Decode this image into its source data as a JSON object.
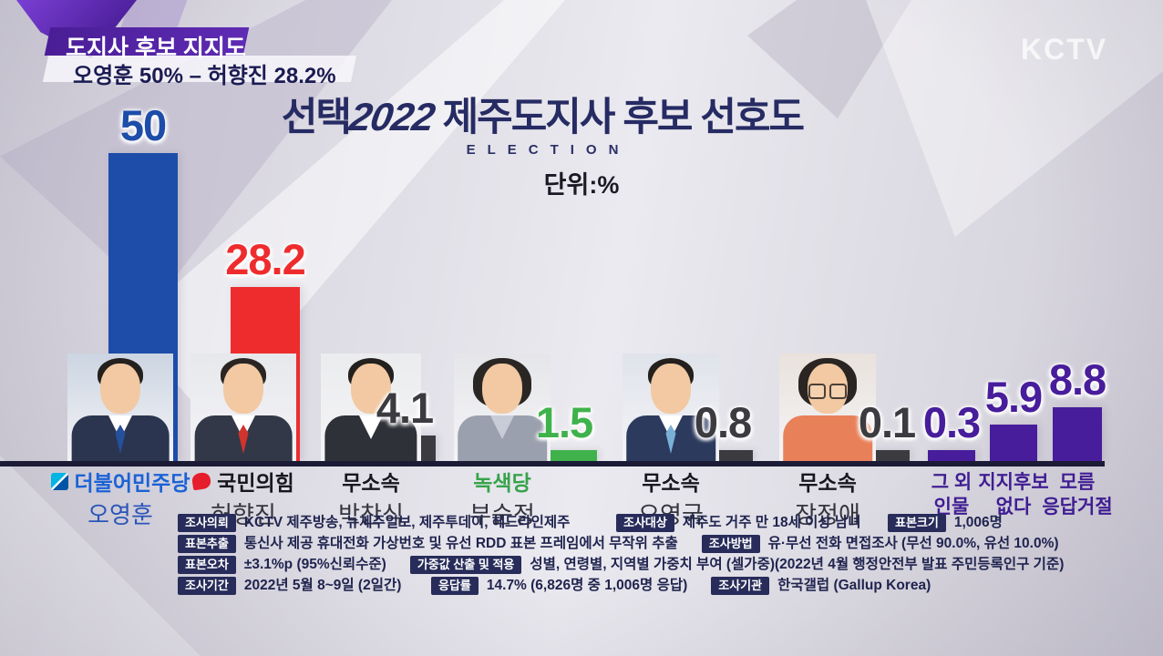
{
  "header_overlay": {
    "line1": "도지사 후보 지지도",
    "line2": "오영훈 50% – 허향진 28.2%"
  },
  "watermark": "KCTV",
  "title": {
    "logo_prefix": "선택",
    "logo_year": "2022",
    "main": " 제주도지사 후보 선호도",
    "eyebrow": "ELECTION",
    "unit": "단위:%"
  },
  "chart_data": {
    "type": "bar",
    "title": "선택2022 제주도지사 후보 선호도",
    "unit_label": "단위:%",
    "ylim": [
      0,
      50
    ],
    "categories": [
      "오영훈",
      "허향진",
      "박찬식",
      "부순정",
      "오영국",
      "장정애",
      "그 외 인물",
      "지지후보 없다",
      "모름 응답거절"
    ],
    "values": [
      50,
      28.2,
      4.1,
      1.5,
      0.8,
      0.1,
      0.3,
      5.9,
      8.8
    ],
    "bar_colors": [
      "#1d4da9",
      "#ee2c2e",
      "#3b3b40",
      "#3fb24c",
      "#3b3b40",
      "#3b3b40",
      "#471d9b",
      "#471d9b",
      "#471d9b"
    ],
    "candidates": [
      {
        "name": "오영훈",
        "party": "더불어민주당",
        "value": 50,
        "bar_color": "#1d4da9",
        "party_color": "#1b62d6",
        "name_color": "#2a55b8",
        "logo": "minjoo",
        "avatar": {
          "bg": "#ccd5e2",
          "suit": "#2b3550",
          "tie": "#24509c",
          "shirt": "#ffffff",
          "hair": "#23201e",
          "female": false,
          "glasses": false
        }
      },
      {
        "name": "허향진",
        "party": "국민의힘",
        "value": 28.2,
        "bar_color": "#ee2c2e",
        "party_color": "#17171f",
        "name_color": "#33343f",
        "logo": "ppp",
        "avatar": {
          "bg": "#e7e8ec",
          "suit": "#333848",
          "tie": "#d0342c",
          "shirt": "#ffffff",
          "hair": "#2a2522",
          "female": false,
          "glasses": false
        }
      },
      {
        "name": "박찬식",
        "party": "무소속",
        "value": 4.1,
        "bar_color": "#3b3b40",
        "party_color": "#17171f",
        "name_color": "#33343f",
        "logo": "",
        "avatar": {
          "bg": "#ebecee",
          "suit": "#2e3138",
          "tie": "",
          "shirt": "#ffffff",
          "hair": "#23201e",
          "female": false,
          "glasses": false
        }
      },
      {
        "name": "부순정",
        "party": "녹색당",
        "value": 1.5,
        "bar_color": "#3fb24c",
        "party_color": "#36a44a",
        "name_color": "#33343f",
        "logo": "",
        "avatar": {
          "bg": "#e5e6e9",
          "suit": "#9aa0ad",
          "tie": "",
          "shirt": "#c7ccd6",
          "hair": "#2a2623",
          "female": true,
          "glasses": false
        }
      },
      {
        "name": "오영국",
        "party": "무소속",
        "value": 0.8,
        "bar_color": "#3b3b40",
        "party_color": "#17171f",
        "name_color": "#33343f",
        "logo": "",
        "avatar": {
          "bg": "#dfe3ea",
          "suit": "#2c3a5e",
          "tie": "#7ab0d8",
          "shirt": "#ffffff",
          "hair": "#23201e",
          "female": false,
          "glasses": false
        }
      },
      {
        "name": "장정애",
        "party": "무소속",
        "value": 0.1,
        "bar_color": "#3b3b40",
        "party_color": "#17171f",
        "name_color": "#33343f",
        "logo": "",
        "avatar": {
          "bg": "#e9e2dc",
          "suit": "#e8805a",
          "tie": "",
          "shirt": "#e8805a",
          "hair": "#2a2522",
          "female": true,
          "glasses": true
        }
      }
    ],
    "others": [
      {
        "label_lines": [
          "그 외",
          "인물"
        ],
        "value": 0.3,
        "bar_color": "#471d9b"
      },
      {
        "label_lines": [
          "지지후보",
          "없다"
        ],
        "value": 5.9,
        "bar_color": "#471d9b"
      },
      {
        "label_lines": [
          "모름",
          "응답거절"
        ],
        "value": 8.8,
        "bar_color": "#471d9b"
      }
    ]
  },
  "survey": {
    "rows": [
      [
        {
          "badge": "조사의뢰",
          "text": "KCTV 제주방송, 뉴제주일보, 제주투데이, 헤드라인제주"
        },
        {
          "badge": "조사대상",
          "text": "제주도 거주 만 18세 이상 남녀"
        },
        {
          "badge": "표본크기",
          "text": "1,006명"
        }
      ],
      [
        {
          "badge": "표본추출",
          "text": "통신사 제공 휴대전화 가상번호 및 유선 RDD 표본 프레임에서 무작위 추출"
        },
        {
          "badge": "조사방법",
          "text": "유·무선 전화 면접조사 (무선 90.0%, 유선 10.0%)"
        }
      ],
      [
        {
          "badge": "표본오차",
          "text": "±3.1%p (95%신뢰수준)"
        },
        {
          "badge": "가중값 산출 및 적용",
          "text": "성별, 연령별, 지역별 가중치 부여 (셀가중)(2022년 4월 행정안전부 발표 주민등록인구 기준)"
        }
      ],
      [
        {
          "badge": "조사기간",
          "text": "2022년 5월 8~9일 (2일간)"
        },
        {
          "badge": "응답률",
          "text": "14.7% (6,826명 중 1,006명 응답)"
        },
        {
          "badge": "조사기관",
          "text": "한국갤럽 (Gallup Korea)"
        }
      ]
    ]
  }
}
